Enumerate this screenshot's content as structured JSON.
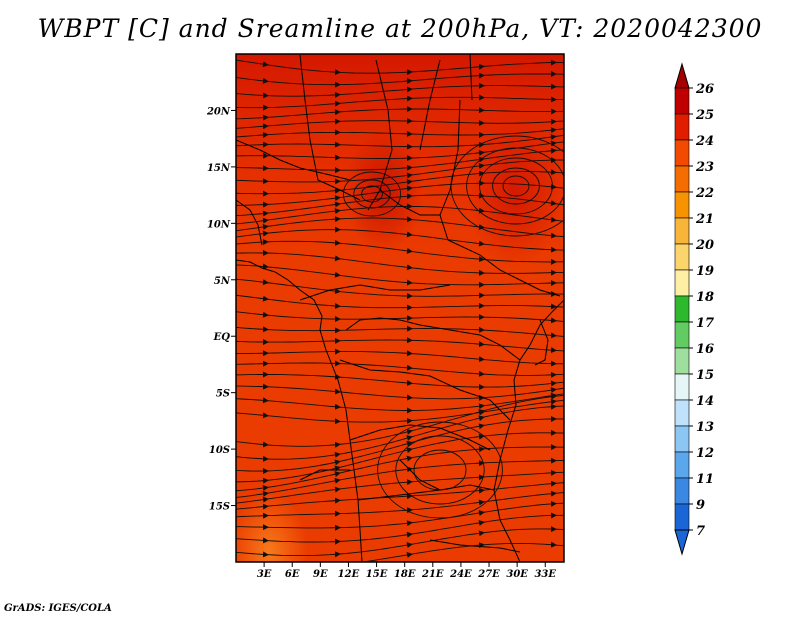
{
  "title": "WBPT [C] and Sreamline at 200hPa, VT: 2020042300",
  "credit": "GrADS: IGES/COLA",
  "map": {
    "lat_labels": [
      "20N",
      "15N",
      "10N",
      "5N",
      "EQ",
      "5S",
      "10S",
      "15S"
    ],
    "lat_values": [
      20,
      15,
      10,
      5,
      0,
      -5,
      -10,
      -15
    ],
    "lon_labels": [
      "3E",
      "6E",
      "9E",
      "12E",
      "15E",
      "18E",
      "21E",
      "24E",
      "27E",
      "30E",
      "33E"
    ],
    "lon_values": [
      3,
      6,
      9,
      12,
      15,
      18,
      21,
      24,
      27,
      30,
      33
    ],
    "lat_range": [
      -20,
      25
    ],
    "lon_range": [
      0,
      35
    ]
  },
  "colorbar": {
    "labels": [
      "26",
      "25",
      "24",
      "23",
      "22",
      "21",
      "20",
      "19",
      "18",
      "17",
      "16",
      "15",
      "14",
      "13",
      "12",
      "11",
      "9",
      "7"
    ],
    "colors": [
      "#a50000",
      "#c00000",
      "#e11d00",
      "#f24a00",
      "#f56c00",
      "#f79300",
      "#f9b53a",
      "#fbd46c",
      "#fdf0a4",
      "#2eb82e",
      "#62cc62",
      "#9edf9e",
      "#e6f6f6",
      "#bfe1fb",
      "#8cc6f3",
      "#5ba7ec",
      "#3b88e3",
      "#1a66d6"
    ]
  }
}
